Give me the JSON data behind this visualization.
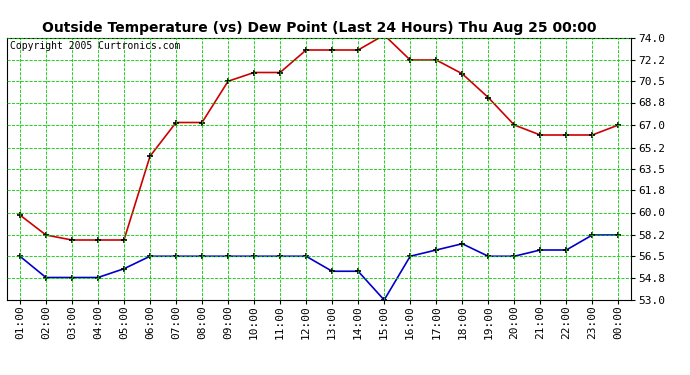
{
  "title": "Outside Temperature (vs) Dew Point (Last 24 Hours) Thu Aug 25 00:00",
  "copyright": "Copyright 2005 Curtronics.com",
  "x_labels": [
    "01:00",
    "02:00",
    "03:00",
    "04:00",
    "05:00",
    "06:00",
    "07:00",
    "08:00",
    "09:00",
    "10:00",
    "11:00",
    "12:00",
    "13:00",
    "14:00",
    "15:00",
    "16:00",
    "17:00",
    "18:00",
    "19:00",
    "20:00",
    "21:00",
    "22:00",
    "23:00",
    "00:00"
  ],
  "temp_red": [
    59.8,
    58.2,
    57.8,
    57.8,
    57.8,
    64.5,
    67.2,
    67.2,
    70.5,
    71.2,
    71.2,
    73.0,
    73.0,
    73.0,
    74.2,
    72.2,
    72.2,
    71.1,
    69.2,
    67.0,
    66.2,
    66.2,
    66.2,
    67.0
  ],
  "dew_blue": [
    56.5,
    54.8,
    54.8,
    54.8,
    55.5,
    56.5,
    56.5,
    56.5,
    56.5,
    56.5,
    56.5,
    56.5,
    55.3,
    55.3,
    53.0,
    56.5,
    57.0,
    57.5,
    56.5,
    56.5,
    57.0,
    57.0,
    58.2,
    58.2
  ],
  "y_ticks": [
    53.0,
    54.8,
    56.5,
    58.2,
    60.0,
    61.8,
    63.5,
    65.2,
    67.0,
    68.8,
    70.5,
    72.2,
    74.0
  ],
  "ylim": [
    53.0,
    74.0
  ],
  "bg_color": "#ffffff",
  "plot_bg_color": "#ffffff",
  "grid_color": "#00cc00",
  "red_line_color": "#cc0000",
  "blue_line_color": "#0000cc",
  "title_fontsize": 10,
  "copyright_fontsize": 7,
  "tick_fontsize": 8
}
